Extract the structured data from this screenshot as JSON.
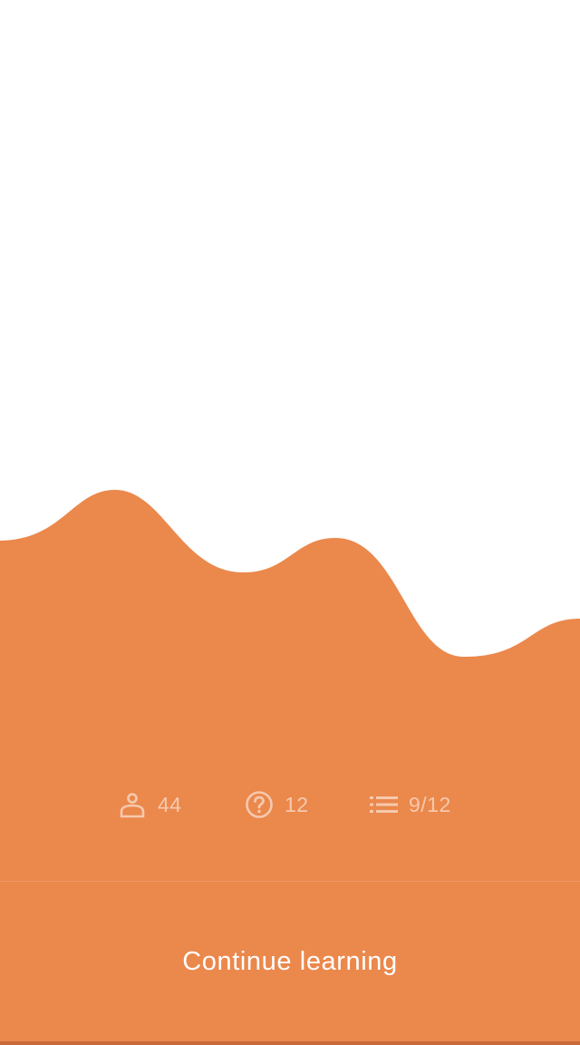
{
  "colors": {
    "background": "#ffffff",
    "accent": "#eb884c",
    "bottom_edge": "#c8693a",
    "stat_text": "#f6c6a6",
    "button_text": "#ffffff"
  },
  "stats": {
    "learners": {
      "icon": "person-icon",
      "value": "44"
    },
    "questions": {
      "icon": "question-circle-icon",
      "value": "12"
    },
    "lessons": {
      "icon": "list-icon",
      "value": "9/12"
    }
  },
  "cta": {
    "label": "Continue learning"
  }
}
